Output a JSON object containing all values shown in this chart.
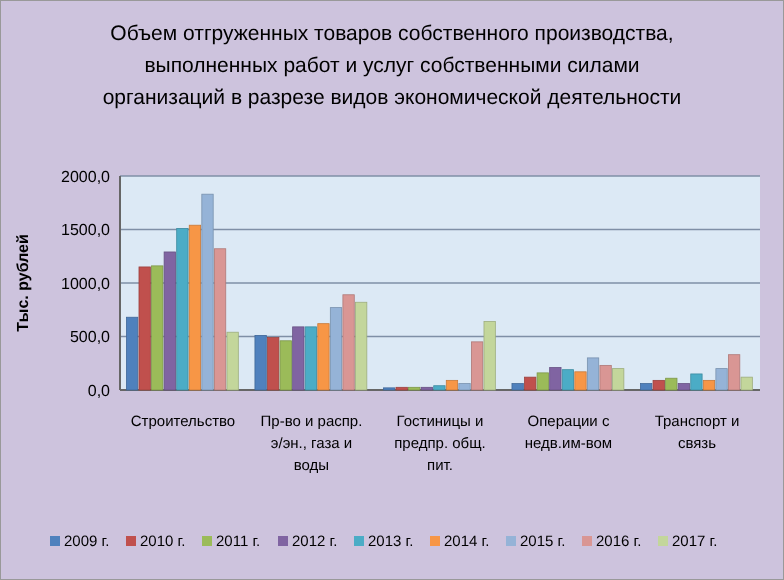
{
  "chart_data": {
    "type": "bar",
    "title": "Объем отгруженных товаров собственного производства, выполненных работ и услуг собственными силами организаций в разрезе видов экономической деятельности",
    "ylabel": "Тыс. рублей",
    "categories": [
      "Строительство",
      "Пр-во и распр. э/эн., газа и воды",
      "Гостиницы и предпр. общ. пит.",
      "Операции с недв.им-вом",
      "Транспорт и связь"
    ],
    "series": [
      {
        "name": "2009 г.",
        "color": "#4f81bd",
        "values": [
          680,
          510,
          20,
          60,
          60
        ]
      },
      {
        "name": "2010 г.",
        "color": "#c0504d",
        "values": [
          1150,
          490,
          25,
          120,
          90
        ]
      },
      {
        "name": "2011 г.",
        "color": "#9bbb59",
        "values": [
          1160,
          460,
          25,
          160,
          110
        ]
      },
      {
        "name": "2012 г.",
        "color": "#8064a2",
        "values": [
          1290,
          590,
          25,
          210,
          60
        ]
      },
      {
        "name": "2013 г.",
        "color": "#4bacc6",
        "values": [
          1510,
          590,
          40,
          190,
          150
        ]
      },
      {
        "name": "2014 г.",
        "color": "#f79646",
        "values": [
          1540,
          620,
          90,
          170,
          90
        ]
      },
      {
        "name": "2015 г.",
        "color": "#95b3d7",
        "values": [
          1830,
          770,
          60,
          300,
          200
        ]
      },
      {
        "name": "2016 г.",
        "color": "#d99694",
        "values": [
          1320,
          890,
          450,
          230,
          330
        ]
      },
      {
        "name": "2017 г.",
        "color": "#c3d69b",
        "values": [
          540,
          820,
          640,
          200,
          120
        ]
      }
    ],
    "ylim": [
      0,
      2000
    ],
    "yticks": [
      {
        "value": 0,
        "label": "0,0"
      },
      {
        "value": 500,
        "label": "500,0"
      },
      {
        "value": 1000,
        "label": "1000,0"
      },
      {
        "value": 1500,
        "label": "1500,0"
      },
      {
        "value": 2000,
        "label": "2000,0"
      }
    ],
    "grid": "y",
    "legend": "bottom"
  }
}
